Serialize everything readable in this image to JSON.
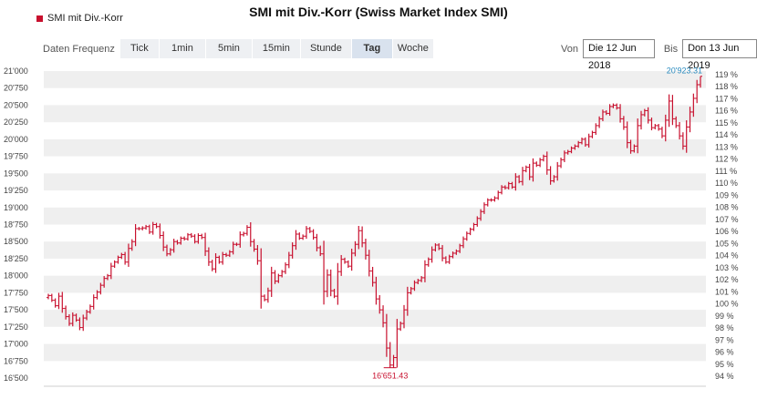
{
  "header": {
    "title": "SMI mit Div.-Korr (Swiss Market Index SMI)",
    "legend_label": "SMI mit Div.-Korr",
    "legend_color": "#c8102e"
  },
  "toolbar": {
    "frequency_label": "Daten Frequenz",
    "buttons": [
      "Tick",
      "1min",
      "5min",
      "15min",
      "Stunde",
      "Tag",
      "Woche"
    ],
    "active": "Tag"
  },
  "date_range": {
    "from_label": "Von",
    "from_value": "Die 12 Jun 2018",
    "to_label": "Bis",
    "to_value": "Don 13 Jun 2019"
  },
  "chart_data": {
    "type": "ohlc",
    "series_color": "#c8102e",
    "accent_color": "#2a8bbf",
    "y_ticks": [
      "21'000",
      "20'750",
      "20'500",
      "20'250",
      "20'000",
      "19'750",
      "19'500",
      "19'250",
      "19'000",
      "18'750",
      "18'500",
      "18'250",
      "18'000",
      "17'750",
      "17'500",
      "17'250",
      "17'000",
      "16'750",
      "16'500"
    ],
    "ylim": [
      16500,
      21000
    ],
    "y2_ticks": [
      "119 %",
      "118 %",
      "117 %",
      "116 %",
      "115 %",
      "114 %",
      "113 %",
      "112 %",
      "111 %",
      "110 %",
      "109 %",
      "108 %",
      "107 %",
      "106 %",
      "105 %",
      "104 %",
      "103 %",
      "102 %",
      "101 %",
      "100 %",
      "99 %",
      "98 %",
      "97 %",
      "96 %",
      "95 %",
      "94 %"
    ],
    "y2lim": [
      93.85,
      119.3
    ],
    "grid": "alternating horizontal bands",
    "annotations": {
      "max_label": "20'923.31",
      "max_value": 20923.31,
      "min_label": "16'651.43",
      "min_value": 16651.43
    },
    "closes": [
      17710,
      17640,
      17560,
      17700,
      17520,
      17400,
      17300,
      17420,
      17350,
      17240,
      17380,
      17470,
      17550,
      17680,
      17760,
      17860,
      17960,
      18000,
      18140,
      18200,
      18270,
      18310,
      18200,
      18400,
      18500,
      18690,
      18690,
      18700,
      18720,
      18640,
      18750,
      18720,
      18590,
      18420,
      18320,
      18380,
      18500,
      18480,
      18550,
      18540,
      18600,
      18580,
      18500,
      18590,
      18560,
      18360,
      18200,
      18100,
      18270,
      18200,
      18310,
      18300,
      18350,
      18460,
      18460,
      18600,
      18620,
      18710,
      18500,
      18390,
      18220,
      17700,
      17650,
      17780,
      18040,
      17920,
      18000,
      18060,
      18160,
      18300,
      18440,
      18610,
      18550,
      18580,
      18690,
      18650,
      18560,
      18410,
      18320,
      17770,
      18010,
      17780,
      17700,
      18060,
      18240,
      18200,
      18140,
      18330,
      18460,
      18660,
      18480,
      18300,
      18070,
      17900,
      17660,
      17500,
      17310,
      16940,
      16690,
      16800,
      17220,
      17300,
      17500,
      17750,
      17810,
      17900,
      17930,
      17970,
      18160,
      18240,
      18380,
      18450,
      18400,
      18260,
      18200,
      18280,
      18330,
      18360,
      18440,
      18540,
      18620,
      18680,
      18750,
      18840,
      18940,
      19040,
      19110,
      19110,
      19140,
      19220,
      19300,
      19290,
      19350,
      19300,
      19450,
      19380,
      19540,
      19590,
      19450,
      19650,
      19620,
      19700,
      19750,
      19550,
      19390,
      19450,
      19610,
      19700,
      19800,
      19820,
      19870,
      19900,
      19950,
      20000,
      19920,
      20040,
      20100,
      20200,
      20300,
      20400,
      20380,
      20480,
      20500,
      20460,
      20300,
      20180,
      19950,
      19830,
      19900,
      20200,
      20360,
      20420,
      20280,
      20170,
      20200,
      20150,
      20050,
      20280,
      20560,
      20300,
      20200,
      20050,
      19900,
      20180,
      20400,
      20600,
      20800,
      20923
    ]
  }
}
